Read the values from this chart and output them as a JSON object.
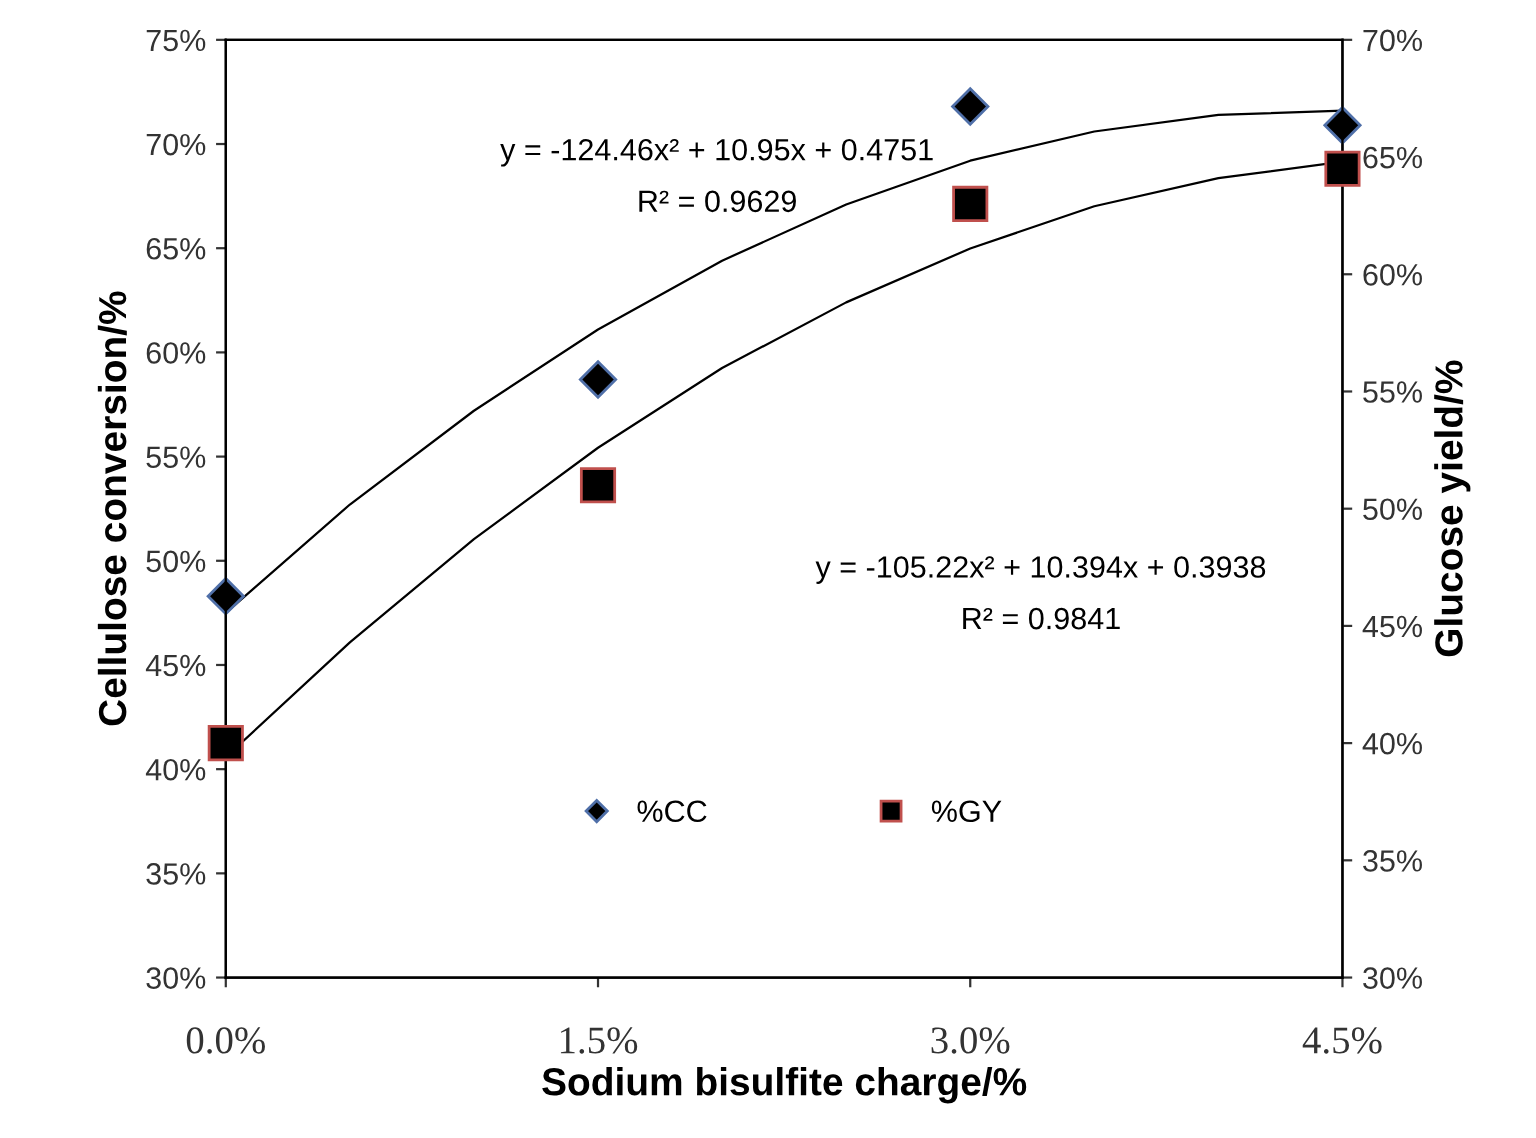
{
  "chart_data": {
    "type": "scatter",
    "xlabel": "Sodium bisulfite charge/%",
    "ylabel": "Cellulose conversion/%",
    "y2label": "Glucose yield/%",
    "x": [
      0,
      1.5,
      3.0,
      4.5
    ],
    "xlim": [
      0,
      4.5
    ],
    "xticks": [
      {
        "value": 0,
        "label": "0.0%"
      },
      {
        "value": 1.5,
        "label": "1.5%"
      },
      {
        "value": 3.0,
        "label": "3.0%"
      },
      {
        "value": 4.5,
        "label": "4.5%"
      }
    ],
    "ylim": [
      30,
      75
    ],
    "yticks": [
      {
        "value": 30,
        "label": "30%"
      },
      {
        "value": 35,
        "label": "35%"
      },
      {
        "value": 40,
        "label": "40%"
      },
      {
        "value": 45,
        "label": "45%"
      },
      {
        "value": 50,
        "label": "50%"
      },
      {
        "value": 55,
        "label": "55%"
      },
      {
        "value": 60,
        "label": "60%"
      },
      {
        "value": 65,
        "label": "65%"
      },
      {
        "value": 70,
        "label": "70%"
      },
      {
        "value": 75,
        "label": "75%"
      }
    ],
    "y2lim": [
      30,
      70
    ],
    "y2ticks": [
      {
        "value": 30,
        "label": "30%"
      },
      {
        "value": 35,
        "label": "35%"
      },
      {
        "value": 40,
        "label": "40%"
      },
      {
        "value": 45,
        "label": "45%"
      },
      {
        "value": 50,
        "label": "50%"
      },
      {
        "value": 55,
        "label": "55%"
      },
      {
        "value": 60,
        "label": "60%"
      },
      {
        "value": 65,
        "label": "65%"
      },
      {
        "value": 70,
        "label": "70%"
      }
    ],
    "series": [
      {
        "name": "%CC",
        "marker": "diamond",
        "color": "#000000",
        "values": [
          48.3,
          58.7,
          71.8,
          70.9
        ]
      },
      {
        "name": "%GY",
        "marker": "square",
        "color": "#000000",
        "axis": "y2",
        "values": [
          40.0,
          51.0,
          63.0,
          64.5
        ]
      },
      {
        "type": "line",
        "marker": "none",
        "color": "#000000",
        "x": [
          0,
          0.5,
          1.0,
          1.5,
          2.0,
          2.5,
          3.0,
          3.5,
          4.0,
          4.5
        ],
        "values": [
          47.5,
          52.7,
          57.2,
          61.1,
          64.4,
          67.1,
          69.2,
          70.6,
          71.4,
          71.6
        ]
      },
      {
        "type": "line",
        "marker": "none",
        "color": "#000000",
        "axis": "y2",
        "x": [
          0,
          0.5,
          1.0,
          1.5,
          2.0,
          2.5,
          3.0,
          3.5,
          4.0,
          4.5
        ],
        "values": [
          39.4,
          44.3,
          48.7,
          52.6,
          56.0,
          58.8,
          61.1,
          62.9,
          64.1,
          64.8
        ]
      }
    ],
    "annotations": [
      "y = -124.46x² + 10.95x + 0.4751",
      "R² = 0.9629",
      "y = -105.22x² + 10.394x + 0.3938",
      "R² = 0.9841"
    ],
    "grid": false,
    "legend": "bottom"
  }
}
